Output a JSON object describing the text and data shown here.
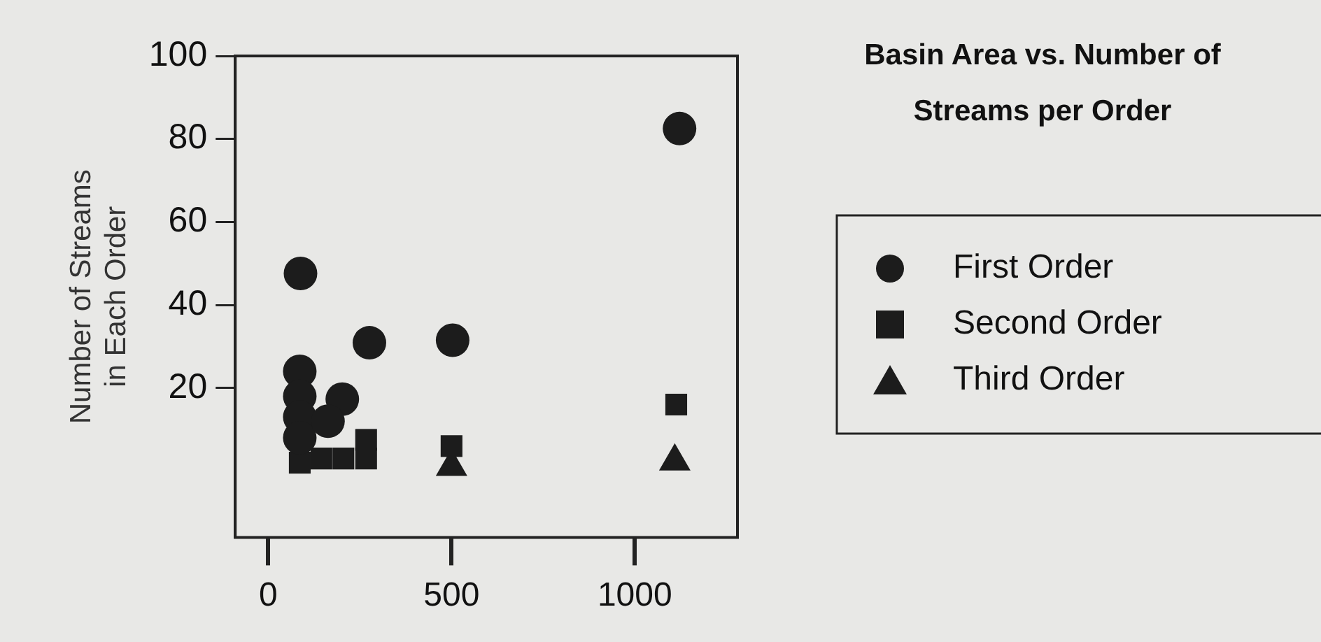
{
  "chart_data": {
    "type": "scatter",
    "title": "Basin Area vs. Number of Streams per Order",
    "ylabel": "Number of Streams in Each Order",
    "xlim": [
      -90,
      1280
    ],
    "xticks": [
      0,
      500,
      1000
    ],
    "ylim": [
      -16,
      100
    ],
    "yticks": [
      20,
      40,
      60,
      80,
      100
    ],
    "grid": false,
    "legend": "right",
    "series": [
      {
        "name": "First Order",
        "color": "#1c1c1c",
        "marker": "circle",
        "x": [
          1122,
          88,
          276,
          503,
          202,
          86,
          86,
          86,
          86,
          163
        ],
        "values": [
          82.5,
          47.6,
          30.9,
          31.5,
          17.3,
          24,
          18,
          13,
          8,
          12
        ]
      },
      {
        "name": "Second Order",
        "color": "#1c1c1c",
        "marker": "square",
        "x": [
          1113,
          500,
          267,
          267,
          86,
          145,
          205
        ],
        "values": [
          16,
          6,
          7.5,
          3,
          2,
          3,
          3
        ]
      },
      {
        "name": "Third Order",
        "color": "#1c1c1c",
        "marker": "triangle",
        "x": [
          1109,
          500
        ],
        "values": [
          2.3,
          1
        ]
      }
    ]
  }
}
